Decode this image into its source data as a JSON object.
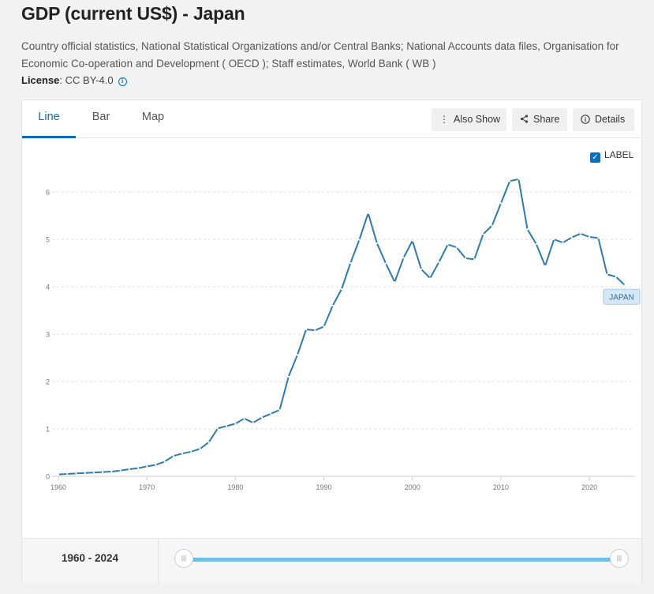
{
  "page": {
    "title": "GDP (current US$) - Japan",
    "source": "Country official statistics, National Statistical Organizations and/or Central Banks; National Accounts data files, Organisation for Economic Co-operation and Development ( OECD ); Staff estimates, World Bank ( WB )",
    "license_label": "License",
    "license_value": ": CC BY-4.0"
  },
  "tabs": [
    {
      "label": "Line",
      "active": true
    },
    {
      "label": "Bar",
      "active": false
    },
    {
      "label": "Map",
      "active": false
    }
  ],
  "toolbar": {
    "also_show": "Also Show",
    "share": "Share",
    "details": "Details"
  },
  "label_toggle": {
    "label": "LABEL",
    "checked": true
  },
  "chart_data": {
    "type": "line",
    "title": "",
    "xlabel": "",
    "ylabel": "",
    "x_ticks": [
      1960,
      1970,
      1980,
      1990,
      2000,
      2010,
      2020
    ],
    "y_ticks": [
      0,
      1,
      2,
      3,
      4,
      5,
      6
    ],
    "xlim": [
      1960,
      2024
    ],
    "ylim": [
      0,
      6.6
    ],
    "grid": true,
    "line_color": "#2e7bb0",
    "series": [
      {
        "name": "JAPAN",
        "x": [
          1960,
          1961,
          1962,
          1963,
          1964,
          1965,
          1966,
          1967,
          1968,
          1969,
          1970,
          1971,
          1972,
          1973,
          1974,
          1975,
          1976,
          1977,
          1978,
          1979,
          1980,
          1981,
          1982,
          1983,
          1984,
          1985,
          1986,
          1987,
          1988,
          1989,
          1990,
          1991,
          1992,
          1993,
          1994,
          1995,
          1996,
          1997,
          1998,
          1999,
          2000,
          2001,
          2002,
          2003,
          2004,
          2005,
          2006,
          2007,
          2008,
          2009,
          2010,
          2011,
          2012,
          2013,
          2014,
          2015,
          2016,
          2017,
          2018,
          2019,
          2020,
          2021,
          2022,
          2023,
          2024
        ],
        "values": [
          0.04,
          0.05,
          0.06,
          0.07,
          0.08,
          0.09,
          0.1,
          0.12,
          0.15,
          0.17,
          0.21,
          0.24,
          0.31,
          0.43,
          0.48,
          0.52,
          0.58,
          0.72,
          1.01,
          1.06,
          1.11,
          1.22,
          1.13,
          1.24,
          1.32,
          1.4,
          2.1,
          2.56,
          3.1,
          3.08,
          3.16,
          3.6,
          3.95,
          4.5,
          4.99,
          5.55,
          4.92,
          4.49,
          4.1,
          4.61,
          4.97,
          4.37,
          4.18,
          4.52,
          4.89,
          4.83,
          4.6,
          4.58,
          5.11,
          5.29,
          5.76,
          6.23,
          6.27,
          5.21,
          4.9,
          4.44,
          5.0,
          4.93,
          5.04,
          5.12,
          5.05,
          5.03,
          4.26,
          4.21,
          4.03
        ]
      }
    ]
  },
  "footer": {
    "range_start": "1960",
    "range_sep": " - ",
    "range_end": "2024",
    "slider_value": [
      0,
      1
    ]
  }
}
